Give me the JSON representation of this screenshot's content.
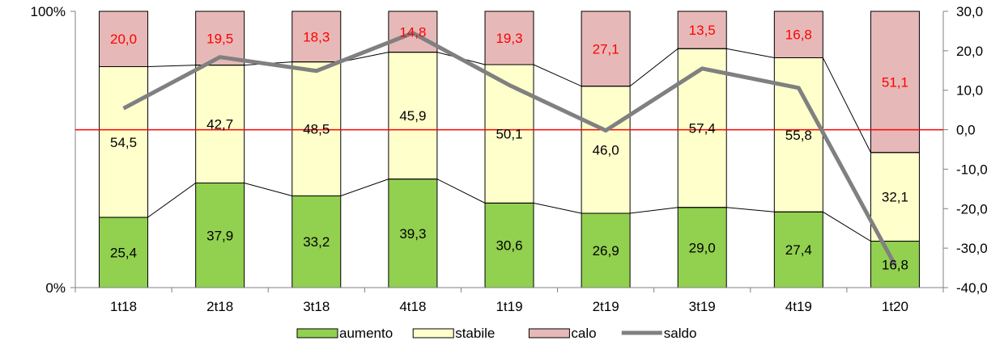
{
  "chart_data": {
    "type": "bar",
    "stacked": true,
    "percent_stacked": true,
    "categories": [
      "1t18",
      "2t18",
      "3t18",
      "4t18",
      "1t19",
      "2t19",
      "3t19",
      "4t19",
      "1t20"
    ],
    "series": [
      {
        "name": "aumento",
        "values": [
          25.4,
          37.9,
          33.2,
          39.3,
          30.6,
          26.9,
          29.0,
          27.4,
          16.8
        ],
        "color": "#92d050",
        "label_color": "#000000"
      },
      {
        "name": "stabile",
        "values": [
          54.5,
          42.7,
          48.5,
          45.9,
          50.1,
          46.0,
          57.4,
          55.8,
          32.1
        ],
        "color": "#ffffcc",
        "label_color": "#000000"
      },
      {
        "name": "calo",
        "values": [
          20.0,
          19.5,
          18.3,
          14.8,
          19.3,
          27.1,
          13.5,
          16.8,
          51.1
        ],
        "color": "#e6b9b8",
        "label_color": "#ff0000"
      }
    ],
    "line_series": {
      "name": "saldo",
      "axis": "right",
      "values": [
        5.4,
        18.4,
        14.9,
        24.5,
        11.3,
        -0.2,
        15.5,
        10.6,
        -34.3
      ],
      "color": "#808080"
    },
    "left_axis": {
      "ticks": [
        "0%",
        "100%"
      ],
      "ylim": [
        0,
        100
      ]
    },
    "right_axis": {
      "ticks": [
        "30,0",
        "20,0",
        "10,0",
        "0,0",
        "-10,0",
        "-20,0",
        "-30,0",
        "-40,0"
      ],
      "ylim": [
        -40,
        30
      ],
      "negative_color": "#ff0000"
    },
    "zero_line_color": "#ff0000",
    "legend": {
      "position": "bottom",
      "labels": [
        "aumento",
        "stabile",
        "calo",
        "saldo"
      ]
    },
    "grid": false
  }
}
